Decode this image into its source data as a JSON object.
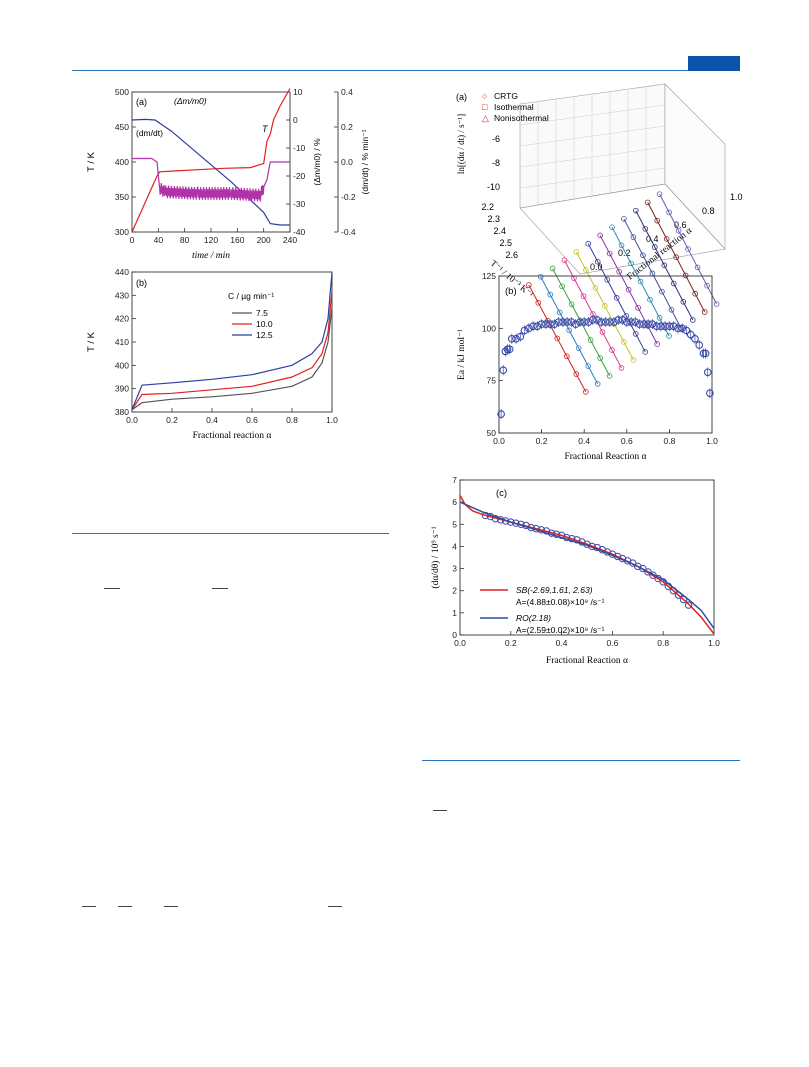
{
  "chart_data": [
    {
      "id": "left-a",
      "type": "line",
      "panel": "(a)",
      "xlabel": "time / min",
      "ylabel_left": "T / K",
      "ylabel_right1": "(Δm/m0) / %",
      "ylabel_right2": "(dm/dt) / % min⁻¹",
      "xlim": [
        0,
        240
      ],
      "xticks": [
        "0",
        "40",
        "80",
        "120",
        "160",
        "200",
        "240"
      ],
      "ylim_left": [
        300,
        500
      ],
      "yticks_left": [
        "300",
        "350",
        "400",
        "450",
        "500"
      ],
      "ylim_right1": [
        -40,
        10
      ],
      "yticks_right1": [
        "-40",
        "-30",
        "-20",
        "-10",
        "0",
        "10"
      ],
      "ylim_right2": [
        -0.4,
        0.4
      ],
      "yticks_right2": [
        "-0.4",
        "-0.2",
        "0.0",
        "0.2",
        "0.4"
      ],
      "annotations": [
        "(Δm/m0)",
        "(dm/dt)",
        "T"
      ],
      "series": [
        {
          "name": "T",
          "axis": "left",
          "color": "#e02020",
          "points": [
            [
              0,
              300
            ],
            [
              38,
              380
            ],
            [
              42,
              386
            ],
            [
              60,
              387
            ],
            [
              100,
              389
            ],
            [
              140,
              391
            ],
            [
              180,
              392
            ],
            [
              200,
              398
            ],
            [
              205,
              430
            ],
            [
              210,
              440
            ],
            [
              215,
              460
            ],
            [
              225,
              480
            ],
            [
              240,
              505
            ]
          ]
        },
        {
          "name": "Δm/m0",
          "axis": "right1",
          "color": "#2b3f9e",
          "points": [
            [
              0,
              0
            ],
            [
              20,
              0.2
            ],
            [
              35,
              0
            ],
            [
              60,
              -4
            ],
            [
              100,
              -12
            ],
            [
              150,
              -22
            ],
            [
              200,
              -33
            ],
            [
              210,
              -37
            ],
            [
              225,
              -37.5
            ],
            [
              240,
              -37.5
            ]
          ]
        },
        {
          "name": "dm/dt",
          "axis": "right2",
          "color": "#b032a8",
          "points": [
            [
              0,
              0.02
            ],
            [
              30,
              0.02
            ],
            [
              38,
              0
            ],
            [
              42,
              -0.15
            ],
            [
              50,
              -0.17
            ],
            [
              100,
              -0.18
            ],
            [
              150,
              -0.18
            ],
            [
              195,
              -0.19
            ],
            [
              205,
              -0.1
            ],
            [
              210,
              0.0
            ],
            [
              240,
              0.0
            ]
          ]
        }
      ]
    },
    {
      "id": "left-b",
      "type": "line",
      "panel": "(b)",
      "xlabel": "Fractional reaction α",
      "ylabel": "T / K",
      "xlim": [
        0,
        1
      ],
      "xticks": [
        "0.0",
        "0.2",
        "0.4",
        "0.6",
        "0.8",
        "1.0"
      ],
      "ylim": [
        380,
        440
      ],
      "yticks": [
        "380",
        "390",
        "400",
        "410",
        "420",
        "430",
        "440"
      ],
      "legend_title": "C / µg min⁻¹",
      "legend_position": "upper-middle",
      "series": [
        {
          "name": "7.5",
          "color": "#555555",
          "points": [
            [
              0,
              381
            ],
            [
              0.05,
              384
            ],
            [
              0.2,
              385.5
            ],
            [
              0.4,
              386.5
            ],
            [
              0.6,
              388
            ],
            [
              0.8,
              391
            ],
            [
              0.9,
              395
            ],
            [
              0.95,
              401
            ],
            [
              0.98,
              410
            ],
            [
              1.0,
              425
            ]
          ]
        },
        {
          "name": "10.0",
          "color": "#e02020",
          "points": [
            [
              0,
              381
            ],
            [
              0.05,
              387.5
            ],
            [
              0.2,
              388
            ],
            [
              0.4,
              389.5
            ],
            [
              0.6,
              391
            ],
            [
              0.8,
              395
            ],
            [
              0.9,
              399
            ],
            [
              0.95,
              405
            ],
            [
              0.98,
              414
            ],
            [
              1.0,
              432
            ]
          ]
        },
        {
          "name": "12.5",
          "color": "#2b3f9e",
          "points": [
            [
              0,
              381
            ],
            [
              0.05,
              391.5
            ],
            [
              0.2,
              392.5
            ],
            [
              0.4,
              394
            ],
            [
              0.6,
              396
            ],
            [
              0.8,
              400
            ],
            [
              0.9,
              405
            ],
            [
              0.95,
              410
            ],
            [
              0.98,
              420
            ],
            [
              1.0,
              440
            ]
          ]
        }
      ]
    },
    {
      "id": "right-a",
      "type": "scatter",
      "panel": "(a)",
      "zlabel": "ln[(dα / dt) / s⁻¹]",
      "ylabel": "T⁻¹ / 10⁻³ K⁻¹",
      "xlabel": "Fractional reaction α",
      "zticks": [
        "-6",
        "-8",
        "-10"
      ],
      "yticks": [
        "2.2",
        "2.3",
        "2.4",
        "2.5",
        "2.6"
      ],
      "xticks": [
        "0.0",
        "0.2",
        "0.4",
        "0.6",
        "0.8",
        "1.0"
      ],
      "legend": [
        "CRTG",
        "Isothermal",
        "Nonisothermal"
      ],
      "legend_position": "top-left"
    },
    {
      "id": "right-b",
      "type": "scatter",
      "panel": "(b)",
      "xlabel": "Fractional Reaction α",
      "ylabel": "Ea / kJ mol⁻¹",
      "xlim": [
        0,
        1
      ],
      "xticks": [
        "0.0",
        "0.2",
        "0.4",
        "0.6",
        "0.8",
        "1.0"
      ],
      "ylim": [
        50,
        125
      ],
      "yticks": [
        "50",
        "75",
        "100",
        "125"
      ],
      "points": [
        [
          0.01,
          59
        ],
        [
          0.02,
          80
        ],
        [
          0.03,
          89
        ],
        [
          0.04,
          90
        ],
        [
          0.05,
          90
        ],
        [
          0.06,
          95
        ],
        [
          0.08,
          95
        ],
        [
          0.1,
          96
        ],
        [
          0.12,
          99
        ],
        [
          0.14,
          100
        ],
        [
          0.16,
          101
        ],
        [
          0.18,
          101
        ],
        [
          0.2,
          102
        ],
        [
          0.22,
          102
        ],
        [
          0.24,
          102
        ],
        [
          0.26,
          102
        ],
        [
          0.28,
          103
        ],
        [
          0.3,
          103
        ],
        [
          0.32,
          103
        ],
        [
          0.34,
          103
        ],
        [
          0.36,
          102
        ],
        [
          0.38,
          103
        ],
        [
          0.4,
          103
        ],
        [
          0.42,
          103
        ],
        [
          0.44,
          104
        ],
        [
          0.46,
          104
        ],
        [
          0.48,
          103
        ],
        [
          0.5,
          103
        ],
        [
          0.52,
          103
        ],
        [
          0.54,
          103
        ],
        [
          0.56,
          104
        ],
        [
          0.58,
          104
        ],
        [
          0.6,
          103
        ],
        [
          0.62,
          103
        ],
        [
          0.64,
          103
        ],
        [
          0.66,
          102
        ],
        [
          0.68,
          102
        ],
        [
          0.7,
          102
        ],
        [
          0.72,
          102
        ],
        [
          0.74,
          101
        ],
        [
          0.76,
          101
        ],
        [
          0.78,
          101
        ],
        [
          0.8,
          101
        ],
        [
          0.82,
          101
        ],
        [
          0.84,
          100
        ],
        [
          0.86,
          100
        ],
        [
          0.88,
          99
        ],
        [
          0.9,
          97
        ],
        [
          0.92,
          95
        ],
        [
          0.94,
          92
        ],
        [
          0.96,
          88
        ],
        [
          0.97,
          88
        ],
        [
          0.98,
          79
        ],
        [
          0.99,
          69
        ]
      ],
      "color": "#3b4aa8"
    },
    {
      "id": "right-c",
      "type": "line",
      "panel": "(c)",
      "xlabel": "Fractional Reaction α",
      "ylabel": "(dα/dθ) / 10⁹ s⁻¹",
      "xlim": [
        0,
        1
      ],
      "xticks": [
        "0.0",
        "0.2",
        "0.4",
        "0.6",
        "0.8",
        "1.0"
      ],
      "ylim": [
        0,
        7
      ],
      "yticks": [
        "0",
        "1",
        "2",
        "3",
        "4",
        "5",
        "6",
        "7"
      ],
      "legend_position": "bottom-left",
      "legend": [
        {
          "label": "SB(-2.69,1.61, 2.63)",
          "sub": "A=(4.88±0.08)×10⁹ /s⁻¹",
          "color": "#e02020"
        },
        {
          "label": "RO(2.18)",
          "sub": "A=(2.59±0.02)×10⁹ /s⁻¹",
          "color": "#2b4fa0"
        }
      ],
      "scatter": [
        [
          0.1,
          5.4
        ],
        [
          0.12,
          5.35
        ],
        [
          0.14,
          5.25
        ],
        [
          0.16,
          5.2
        ],
        [
          0.18,
          5.15
        ],
        [
          0.2,
          5.1
        ],
        [
          0.22,
          5.05
        ],
        [
          0.24,
          5.0
        ],
        [
          0.26,
          4.95
        ],
        [
          0.28,
          4.85
        ],
        [
          0.3,
          4.8
        ],
        [
          0.32,
          4.75
        ],
        [
          0.34,
          4.7
        ],
        [
          0.36,
          4.6
        ],
        [
          0.38,
          4.55
        ],
        [
          0.4,
          4.5
        ],
        [
          0.42,
          4.4
        ],
        [
          0.44,
          4.35
        ],
        [
          0.46,
          4.3
        ],
        [
          0.48,
          4.2
        ],
        [
          0.5,
          4.1
        ],
        [
          0.52,
          4.0
        ],
        [
          0.54,
          3.95
        ],
        [
          0.56,
          3.85
        ],
        [
          0.58,
          3.75
        ],
        [
          0.6,
          3.65
        ],
        [
          0.62,
          3.55
        ],
        [
          0.64,
          3.45
        ],
        [
          0.66,
          3.35
        ],
        [
          0.68,
          3.25
        ],
        [
          0.7,
          3.1
        ],
        [
          0.72,
          3.0
        ],
        [
          0.74,
          2.85
        ],
        [
          0.76,
          2.7
        ],
        [
          0.78,
          2.55
        ],
        [
          0.8,
          2.4
        ],
        [
          0.82,
          2.2
        ],
        [
          0.84,
          2.0
        ],
        [
          0.86,
          1.8
        ],
        [
          0.88,
          1.6
        ],
        [
          0.9,
          1.35
        ]
      ],
      "series": [
        {
          "name": "SB",
          "color": "#e02020",
          "points": [
            [
              0.0,
              6.3
            ],
            [
              0.02,
              5.9
            ],
            [
              0.05,
              5.6
            ],
            [
              0.1,
              5.4
            ],
            [
              0.2,
              5.1
            ],
            [
              0.3,
              4.8
            ],
            [
              0.4,
              4.5
            ],
            [
              0.5,
              4.1
            ],
            [
              0.6,
              3.65
            ],
            [
              0.7,
              3.1
            ],
            [
              0.8,
              2.4
            ],
            [
              0.9,
              1.4
            ],
            [
              0.95,
              0.8
            ],
            [
              1.0,
              0.05
            ]
          ]
        },
        {
          "name": "RO",
          "color": "#2b4fa0",
          "points": [
            [
              0.0,
              6.0
            ],
            [
              0.1,
              5.5
            ],
            [
              0.2,
              5.1
            ],
            [
              0.3,
              4.75
            ],
            [
              0.4,
              4.4
            ],
            [
              0.5,
              4.05
            ],
            [
              0.6,
              3.6
            ],
            [
              0.7,
              3.1
            ],
            [
              0.8,
              2.5
            ],
            [
              0.9,
              1.6
            ],
            [
              0.95,
              1.1
            ],
            [
              1.0,
              0.3
            ]
          ]
        }
      ]
    }
  ]
}
